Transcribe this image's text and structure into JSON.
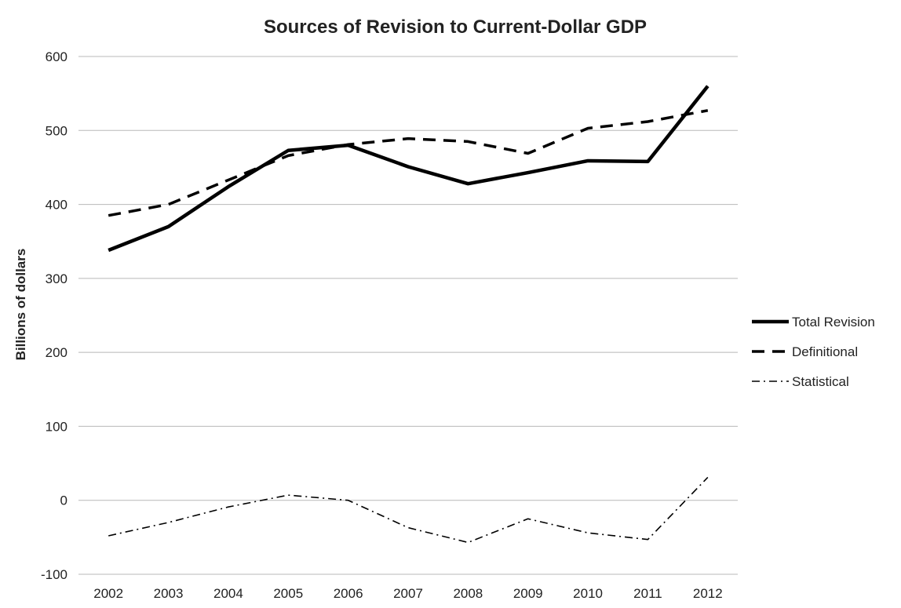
{
  "chart_data": {
    "type": "line",
    "title": "Sources of Revision to Current-Dollar GDP",
    "xlabel": "",
    "ylabel": "Billions of dollars",
    "ylim": [
      -100,
      600
    ],
    "yticks": [
      -100,
      0,
      100,
      200,
      300,
      400,
      500,
      600
    ],
    "grid": true,
    "legend_position": "right",
    "x": [
      "2002",
      "2003",
      "2004",
      "2005",
      "2006",
      "2007",
      "2008",
      "2009",
      "2010",
      "2011",
      "2012"
    ],
    "series": [
      {
        "name": "Total Revision",
        "style": "solid-thick",
        "color": "#000000",
        "values": [
          338,
          370,
          424,
          473,
          480,
          451,
          428,
          443,
          459,
          458,
          560
        ]
      },
      {
        "name": "Definitional",
        "style": "dashed",
        "color": "#000000",
        "values": [
          385,
          400,
          433,
          466,
          481,
          489,
          485,
          469,
          503,
          512,
          527
        ]
      },
      {
        "name": "Statistical",
        "style": "dash-dot",
        "color": "#000000",
        "values": [
          -48,
          -30,
          -9,
          7,
          0,
          -37,
          -57,
          -25,
          -44,
          -53,
          31
        ]
      }
    ]
  }
}
